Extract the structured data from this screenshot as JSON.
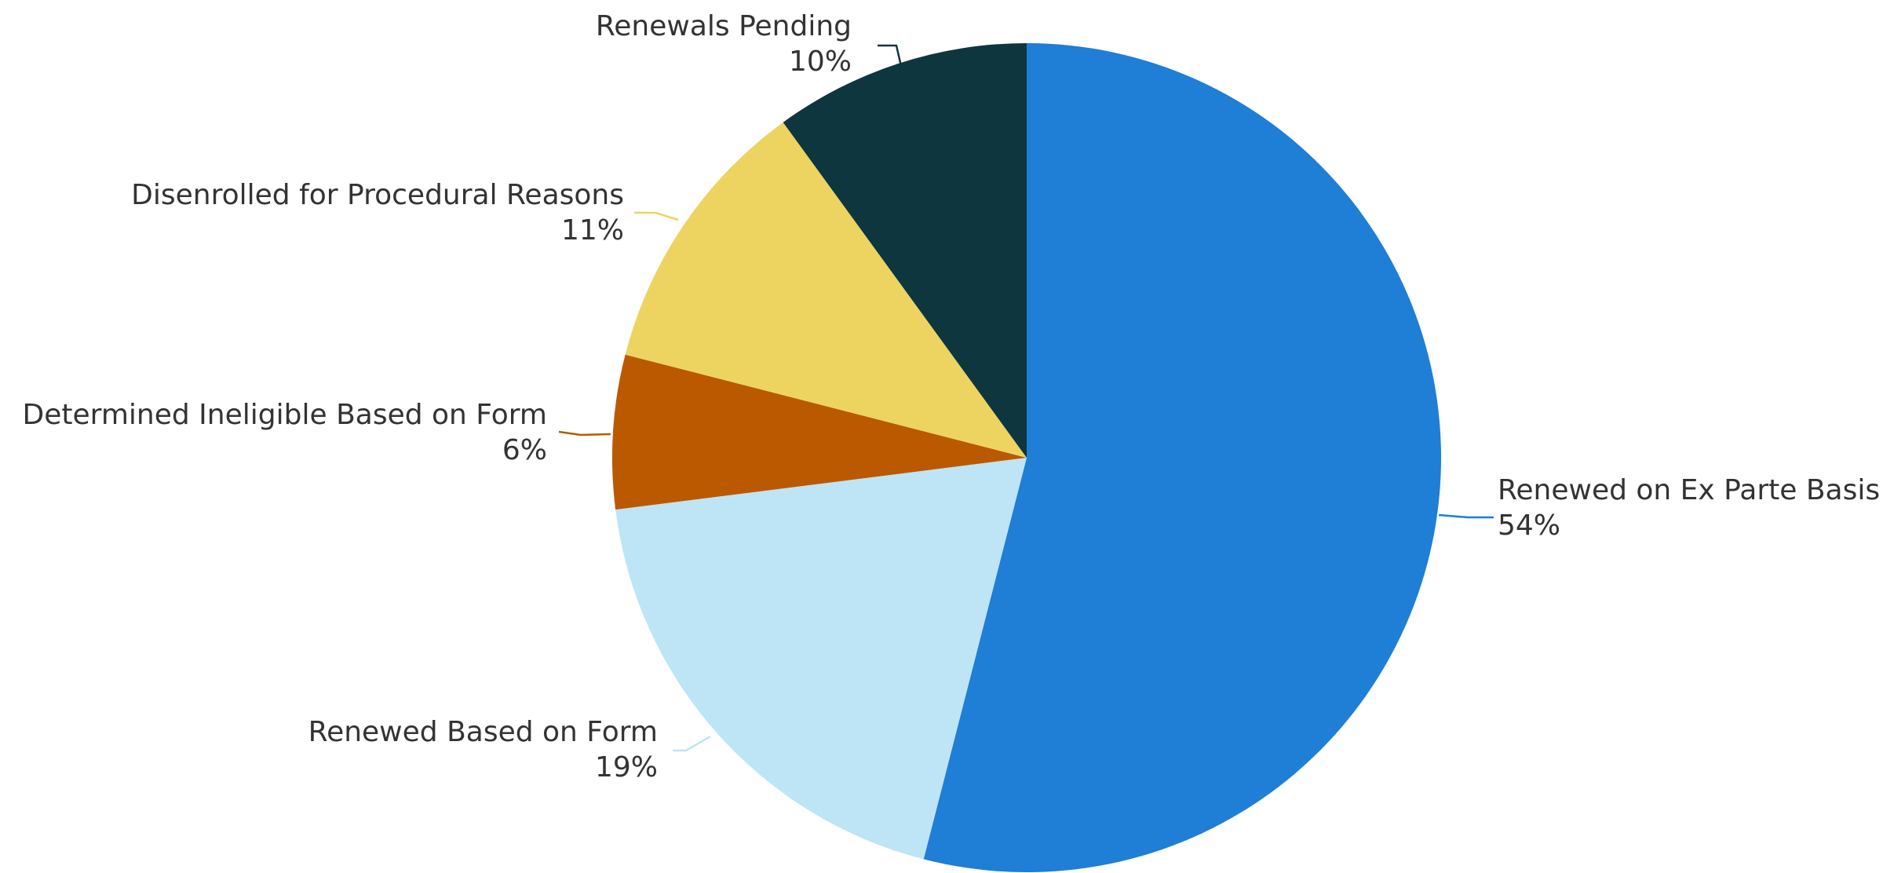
{
  "chart_data": {
    "type": "pie",
    "title": "",
    "start": "12 o'clock",
    "direction": "clockwise",
    "legend": "none",
    "slices": [
      {
        "name": "Renewed on Ex Parte Basis",
        "value": 54,
        "label": "54%",
        "color": "#1F7ED6"
      },
      {
        "name": "Renewed Based on Form",
        "value": 19,
        "label": "19%",
        "color": "#BDE5F5"
      },
      {
        "name": "Determined Ineligible Based on Form",
        "value": 6,
        "label": "6%",
        "color": "#BB5900"
      },
      {
        "name": "Disenrolled for Procedural Reasons",
        "value": 11,
        "label": "11%",
        "color": "#EDD461"
      },
      {
        "name": "Renewals Pending",
        "value": 10,
        "label": "10%",
        "color": "#0E363F"
      }
    ]
  }
}
